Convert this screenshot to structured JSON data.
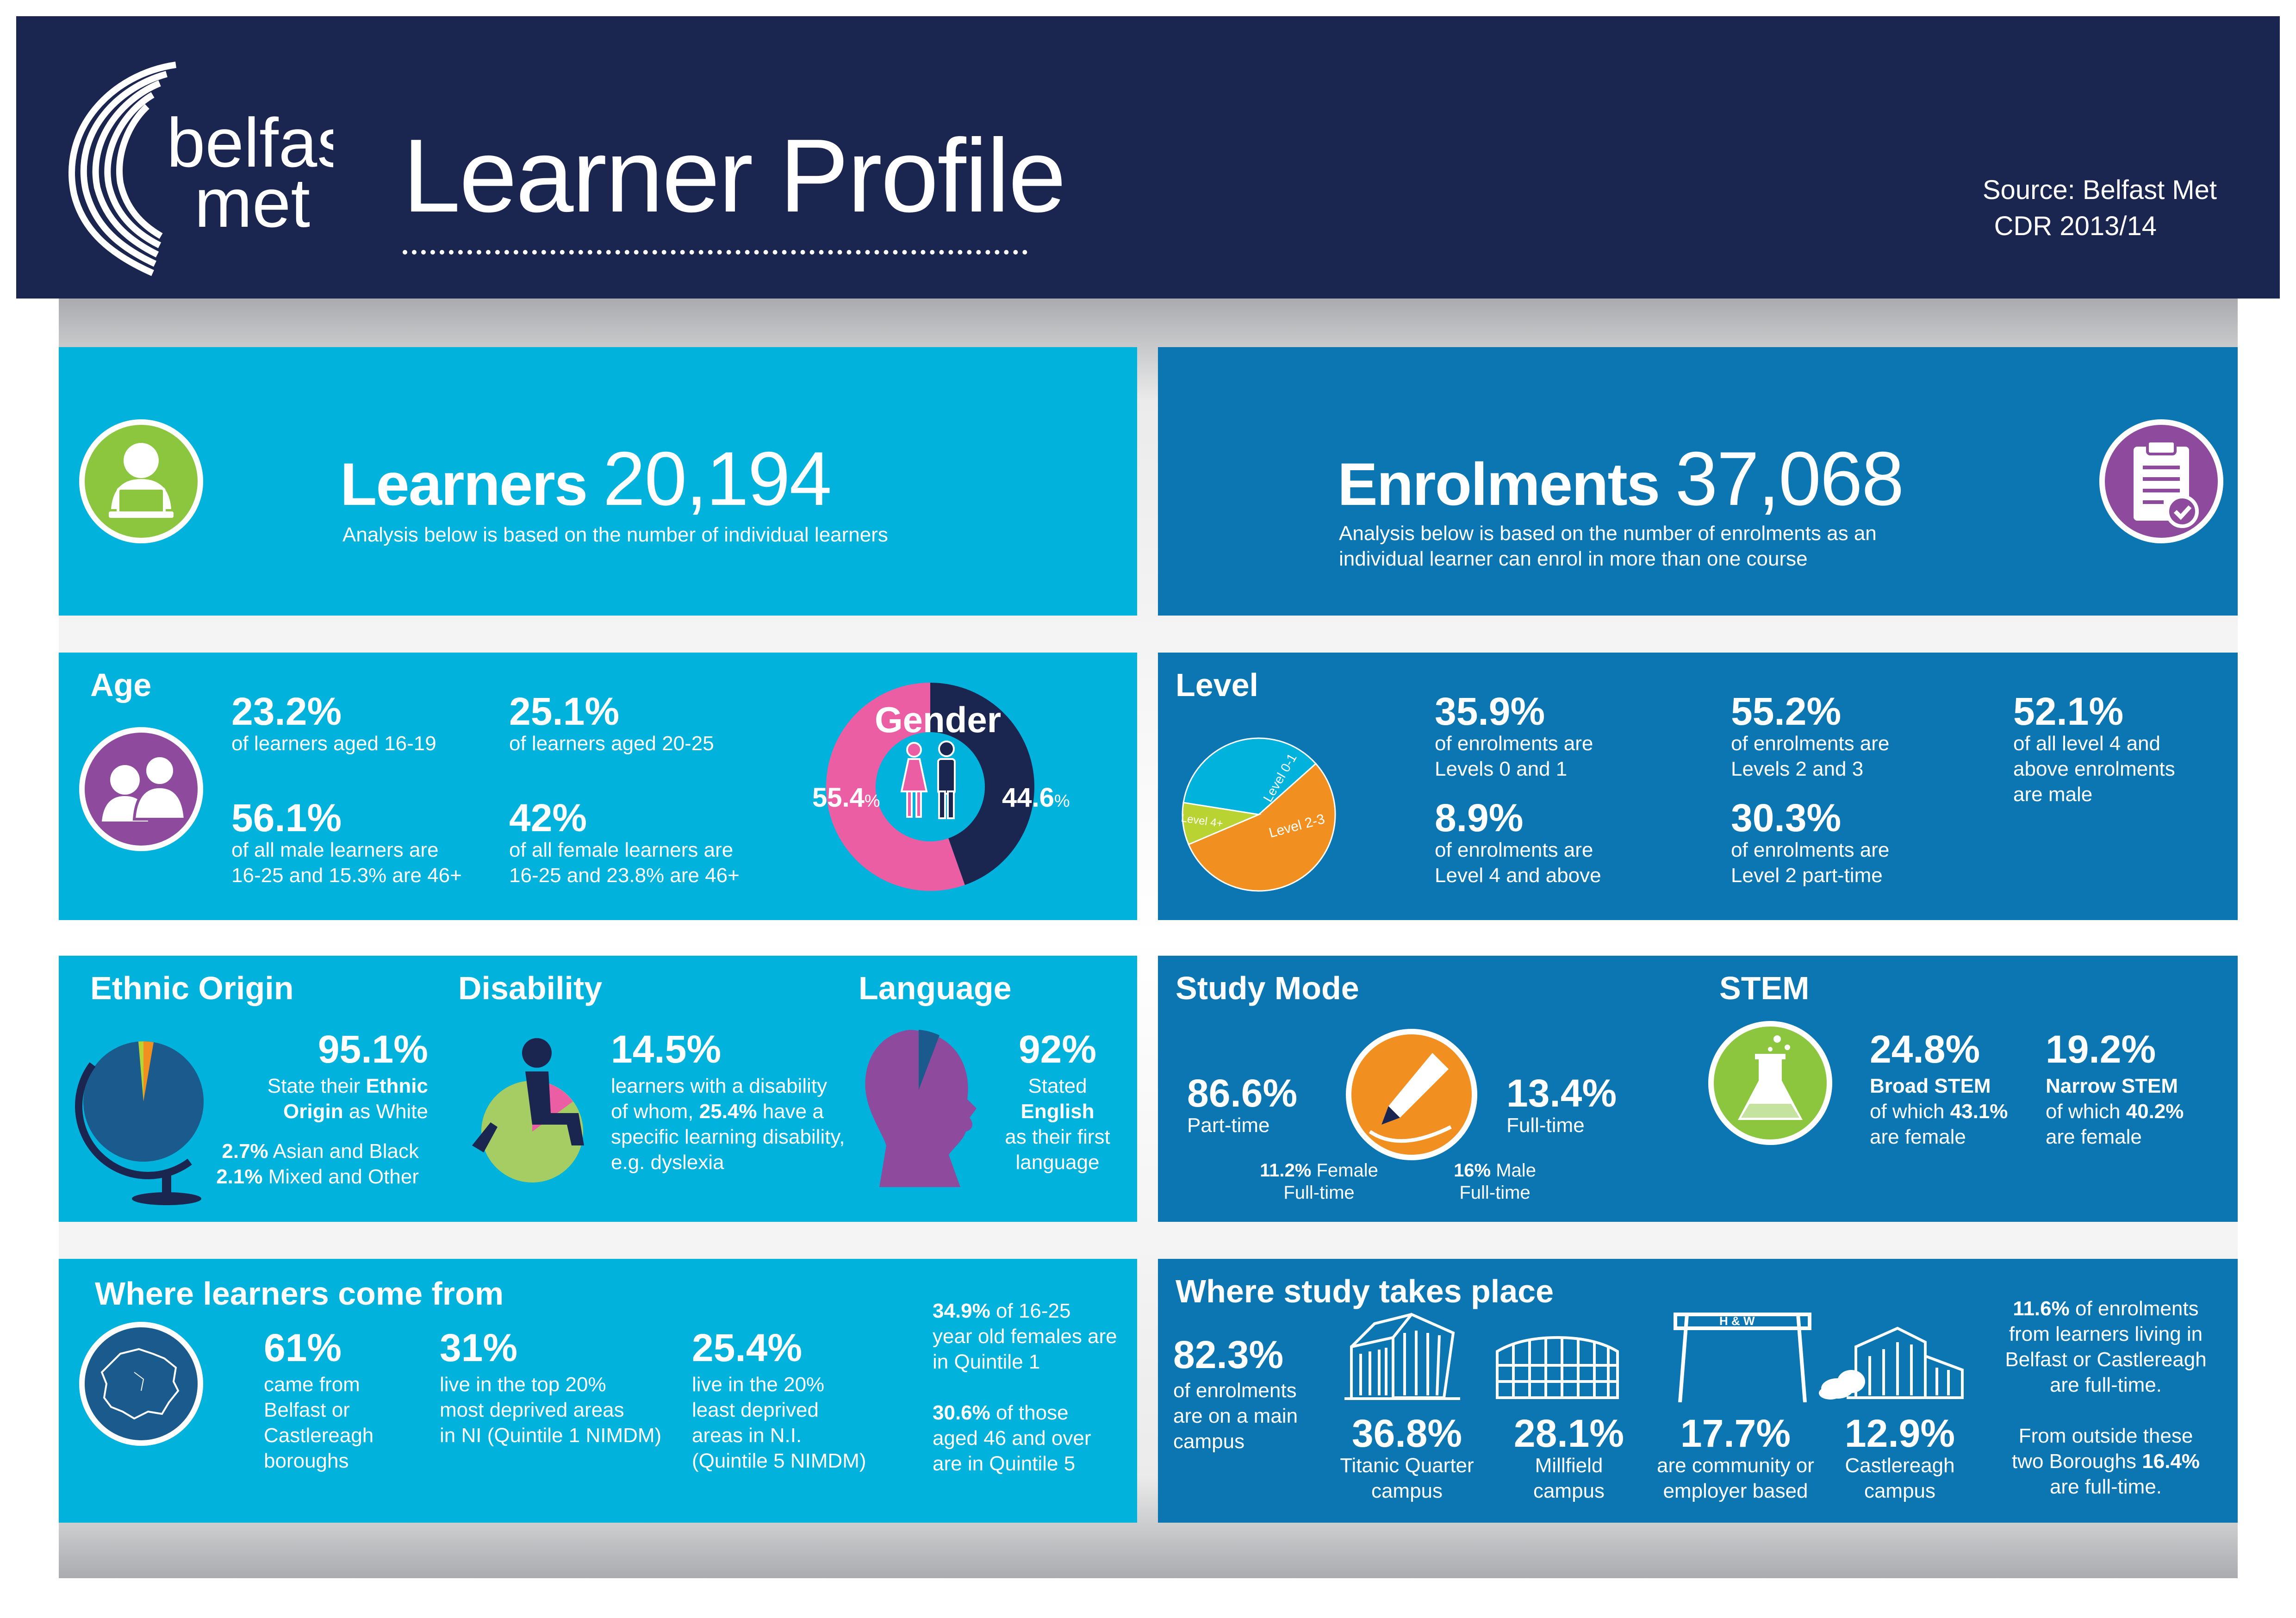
{
  "header": {
    "logo_line1": "belfast",
    "logo_line2": "met",
    "title": "Learner Profile",
    "source_line1": "Source: Belfast Met",
    "source_line2": "CDR 2013/14"
  },
  "learners": {
    "label": "Learners",
    "count": "20,194",
    "note": "Analysis below is based on the number of individual learners"
  },
  "enrolments": {
    "label": "Enrolments",
    "count": "37,068",
    "note_line1": "Analysis below is based on the number of enrolments as an",
    "note_line2": "individual learner can enrol in more than one course"
  },
  "age": {
    "heading": "Age",
    "stats": [
      {
        "value": "23.2%",
        "line1": "of learners aged 16-19",
        "line2": ""
      },
      {
        "value": "25.1%",
        "line1": "of learners aged 20-25",
        "line2": ""
      },
      {
        "value": "56.1%",
        "line1": "of all male learners are",
        "line2": "16-25 and 15.3% are 46+"
      },
      {
        "value": "42%",
        "line1": "of all female learners are",
        "line2": "16-25 and 23.8% are 46+"
      }
    ]
  },
  "gender": {
    "heading": "Gender",
    "female_value": "55.4",
    "male_value": "44.6",
    "pct": "%",
    "female_fraction": 0.554,
    "male_fraction": 0.446,
    "colors": {
      "female": "#ec5ea3",
      "male": "#1a2550"
    }
  },
  "level": {
    "heading": "Level",
    "pie_labels": [
      "Level 0-1",
      "Level 2-3",
      "Level 4+"
    ],
    "pie_fractions": [
      0.359,
      0.552,
      0.089
    ],
    "pie_colors": [
      "#00b2dc",
      "#f19020",
      "#b9d333"
    ],
    "stats": [
      {
        "value": "35.9%",
        "line1": "of enrolments are",
        "line2": "Levels 0 and 1",
        "line3": ""
      },
      {
        "value": "55.2%",
        "line1": "of enrolments are",
        "line2": "Levels 2 and 3",
        "line3": ""
      },
      {
        "value": "52.1%",
        "line1": "of all level 4 and",
        "line2": "above enrolments",
        "line3": "are male"
      },
      {
        "value": "8.9%",
        "line1": "of enrolments are",
        "line2": "Level 4 and above",
        "line3": ""
      },
      {
        "value": "30.3%",
        "line1": "of enrolments are",
        "line2": "Level 2 part-time",
        "line3": ""
      }
    ]
  },
  "ethnic": {
    "heading": "Ethnic Origin",
    "value": "95.1%",
    "line1_pre": "State their ",
    "line1_bold": "Ethnic",
    "line2_bold": "Origin",
    "line2_post": " as White",
    "asian_value": "2.7%",
    "asian_text": " Asian and Black",
    "mixed_value": "2.1%",
    "mixed_text": " Mixed and Other"
  },
  "disability": {
    "heading": "Disability",
    "value": "14.5%",
    "line1": "learners with a disability",
    "line2_pre": "of whom, ",
    "line2_bold": "25.4%",
    "line2_post": " have a",
    "line3": "specific learning disability,",
    "line4": "e.g. dyslexia"
  },
  "language": {
    "heading": "Language",
    "value": "92%",
    "line1": "Stated",
    "line2": "English",
    "line3": "as their first",
    "line4": "language"
  },
  "study_mode": {
    "heading": "Study Mode",
    "part_value": "86.6%",
    "part_label": "Part-time",
    "full_value": "13.4%",
    "full_label": "Full-time",
    "female_ft_value": "11.2%",
    "female_ft_text1": " Female",
    "female_ft_text2": "Full-time",
    "male_ft_value": "16%",
    "male_ft_text1": " Male",
    "male_ft_text2": "Full-time"
  },
  "stem": {
    "heading": "STEM",
    "broad_value": "24.8%",
    "broad_label": "Broad STEM",
    "broad_pre": "of which ",
    "broad_pct": "43.1%",
    "broad_post": "are female",
    "narrow_value": "19.2%",
    "narrow_label": "Narrow STEM",
    "narrow_pre": "of which ",
    "narrow_pct": "40.2%",
    "narrow_post": "are female"
  },
  "where_from": {
    "heading": "Where learners come from",
    "stats": [
      {
        "value": "61%",
        "lines": [
          "came from",
          "Belfast or",
          "Castlereagh",
          "boroughs"
        ]
      },
      {
        "value": "31%",
        "lines": [
          "live in the top 20%",
          "most deprived areas",
          "in NI (Quintile 1 NIMDM)"
        ]
      },
      {
        "value": "25.4%",
        "lines": [
          "live in the 20%",
          "least deprived",
          "areas in N.I.",
          "(Quintile 5 NIMDM)"
        ]
      }
    ],
    "note1_value": "34.9%",
    "note1_line1": " of 16-25",
    "note1_line2": "year old females are",
    "note1_line3": "in Quintile 1",
    "note2_value": "30.6%",
    "note2_line1": " of those",
    "note2_line2": "aged 46 and over",
    "note2_line3": "are in Quintile 5"
  },
  "where_study": {
    "heading": "Where study takes place",
    "main_value": "82.3%",
    "main_lines": [
      "of enrolments",
      "are on a main",
      "campus"
    ],
    "campuses": [
      {
        "value": "36.8%",
        "line1": "Titanic Quarter",
        "line2": "campus"
      },
      {
        "value": "28.1%",
        "line1": "Millfield",
        "line2": "campus"
      },
      {
        "value": "17.7%",
        "line1": "are community or",
        "line2": "employer based"
      },
      {
        "value": "12.9%",
        "line1": "Castlereagh",
        "line2": "campus"
      }
    ],
    "crane_letters": "H & W",
    "note1_value": "11.6%",
    "note1_line1": " of enrolments",
    "note1_line2": "from learners living in",
    "note1_line3": "Belfast or Castlereagh",
    "note1_line4": "are full-time.",
    "note2_line1": "From outside these",
    "note2_line2_pre": "two Boroughs ",
    "note2_value": "16.4%",
    "note2_line3": "are full-time."
  },
  "icons": {
    "learner": "laptop-user-icon",
    "clipboard": "clipboard-check-icon",
    "age": "two-people-icon",
    "globe": "globe-icon",
    "wheelchair": "wheelchair-icon",
    "head": "head-profile-icon",
    "pen": "pen-icon",
    "flask": "flask-icon",
    "map": "northern-ireland-map-icon"
  }
}
